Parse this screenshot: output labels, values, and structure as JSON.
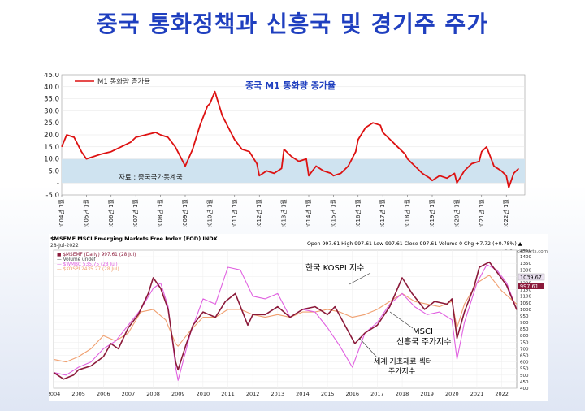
{
  "slide": {
    "title": "중국 통화정책과 신흥국 및 경기주 주가"
  },
  "chart_data": [
    {
      "type": "line",
      "title": "중국 M1 통화량 증가율",
      "legend": [
        "M1 통화량 증가율"
      ],
      "source_note": "자료 : 중국국가통계국",
      "ylim": [
        -5,
        45
      ],
      "yticks": [
        "45.0",
        "40.0",
        "35.0",
        "30.0",
        "25.0",
        "20.0",
        "15.0",
        "10.0",
        "5.0",
        "-",
        "-5.0"
      ],
      "xlim": [
        2004.0,
        2022.75
      ],
      "xticks": [
        "2004년 1월",
        "2005년 1월",
        "2006년 1월",
        "2007년 1월",
        "2008년 1월",
        "2009년 1월",
        "2010년 1월",
        "2011년 1월",
        "2012년 1월",
        "2013년 1월",
        "2014년 1월",
        "2015년 1월",
        "2016년 1월",
        "2017년 1월",
        "2018년 1월",
        "2019년 1월",
        "2020년 1월",
        "2021년 1월",
        "2022년 1월"
      ],
      "shade_range": [
        0,
        10
      ],
      "series": [
        {
          "name": "M1 통화량 증가율",
          "color": "#dd1111",
          "x": [
            2004.0,
            2004.2,
            2004.5,
            2004.8,
            2005.0,
            2005.3,
            2005.6,
            2006.0,
            2006.4,
            2006.8,
            2007.0,
            2007.4,
            2007.8,
            2008.0,
            2008.3,
            2008.6,
            2008.9,
            2009.0,
            2009.3,
            2009.6,
            2009.9,
            2010.0,
            2010.2,
            2010.5,
            2010.8,
            2011.0,
            2011.3,
            2011.6,
            2011.9,
            2012.0,
            2012.3,
            2012.6,
            2012.9,
            2013.0,
            2013.3,
            2013.6,
            2013.9,
            2014.0,
            2014.3,
            2014.6,
            2014.9,
            2015.0,
            2015.3,
            2015.6,
            2015.9,
            2016.0,
            2016.3,
            2016.6,
            2016.9,
            2017.0,
            2017.3,
            2017.6,
            2017.9,
            2018.0,
            2018.3,
            2018.6,
            2018.9,
            2019.0,
            2019.3,
            2019.6,
            2019.9,
            2020.0,
            2020.3,
            2020.6,
            2020.9,
            2021.0,
            2021.2,
            2021.5,
            2021.8,
            2022.0,
            2022.1,
            2022.3,
            2022.5
          ],
          "y": [
            15,
            20,
            19,
            13,
            10,
            11,
            12,
            13,
            15,
            17,
            19,
            20,
            21,
            20,
            19,
            15,
            9,
            7,
            14,
            24,
            32,
            33,
            38,
            28,
            22,
            18,
            14,
            13,
            8,
            3,
            5,
            4,
            6,
            14,
            11,
            9,
            10,
            3,
            7,
            5,
            4,
            3,
            4,
            7,
            13,
            18,
            23,
            25,
            24,
            21,
            18,
            15,
            12,
            10,
            7,
            4,
            2,
            1,
            3,
            2,
            4,
            0,
            5,
            8,
            9,
            13,
            15,
            7,
            5,
            3,
            -2,
            4,
            6
          ]
        }
      ]
    },
    {
      "type": "line",
      "title": "$MSEMF MSCI Emerging Markets Free Index (EOD) INDX",
      "date_label": "28-Jul-2022",
      "ohlc": "Open 997.61 High 997.61 Low 997.61 Close 997.61 Volume 0 Chg +7.72 (+0.78%) ▲",
      "watermark": "© StockCharts.com",
      "legend": [
        "■ $MSEMF (Daily) 997.61 (28 Jul)",
        "— Volume undef",
        "— $WMBC 535.75 (28 Jul)",
        "— $KOSPI 2435.27 (28 Jul)"
      ],
      "annotations": [
        "한국 KOSPI 지수",
        "MSCI",
        "신흥국 주가지수",
        "세계 기초재료 섹터",
        "주가지수"
      ],
      "end_labels": [
        "1039.67",
        "997.61"
      ],
      "ylim": [
        400,
        1450
      ],
      "yticks": [
        400,
        450,
        500,
        550,
        600,
        650,
        700,
        750,
        800,
        850,
        900,
        950,
        1000,
        1050,
        1100,
        1150,
        1200,
        1250,
        1300,
        1350,
        1400,
        1450
      ],
      "xlim": [
        2004.0,
        2022.6
      ],
      "xticks": [
        "2004",
        "2005",
        "2006",
        "2007",
        "2008",
        "2009",
        "2010",
        "2011",
        "2012",
        "2013",
        "2014",
        "2015",
        "2016",
        "2017",
        "2018",
        "2019",
        "2020",
        "2021",
        "2022"
      ],
      "series": [
        {
          "name": "$MSEMF",
          "color": "#8b1a3a",
          "x": [
            2004.0,
            2004.4,
            2004.8,
            2005.0,
            2005.5,
            2006.0,
            2006.3,
            2006.6,
            2007.0,
            2007.4,
            2007.8,
            2008.0,
            2008.3,
            2008.6,
            2008.9,
            2009.0,
            2009.3,
            2009.6,
            2010.0,
            2010.5,
            2010.9,
            2011.3,
            2011.8,
            2012.0,
            2012.5,
            2013.0,
            2013.5,
            2014.0,
            2014.5,
            2015.0,
            2015.3,
            2015.7,
            2016.1,
            2016.5,
            2017.0,
            2017.5,
            2018.0,
            2018.4,
            2018.9,
            2019.3,
            2019.8,
            2020.0,
            2020.2,
            2020.5,
            2020.9,
            2021.1,
            2021.5,
            2021.9,
            2022.2,
            2022.6
          ],
          "y": [
            520,
            470,
            500,
            540,
            570,
            640,
            740,
            700,
            860,
            960,
            1120,
            1240,
            1160,
            1000,
            600,
            540,
            720,
            880,
            980,
            940,
            1060,
            1120,
            880,
            960,
            960,
            1020,
            940,
            1000,
            1020,
            960,
            1020,
            880,
            740,
            820,
            880,
            1020,
            1240,
            1120,
            1000,
            1060,
            1040,
            1080,
            780,
            980,
            1180,
            1320,
            1360,
            1260,
            1180,
            997
          ]
        },
        {
          "name": "$WMBC",
          "color": "#e060e0",
          "x": [
            2004.0,
            2004.5,
            2005.0,
            2005.5,
            2006.0,
            2006.5,
            2007.0,
            2007.5,
            2008.0,
            2008.3,
            2008.6,
            2008.9,
            2009.0,
            2009.5,
            2010.0,
            2010.5,
            2011.0,
            2011.5,
            2012.0,
            2012.5,
            2013.0,
            2013.5,
            2014.0,
            2014.5,
            2015.0,
            2015.5,
            2016.0,
            2016.5,
            2017.0,
            2017.5,
            2018.0,
            2018.5,
            2019.0,
            2019.5,
            2020.0,
            2020.2,
            2020.5,
            2021.0,
            2021.4,
            2021.8,
            2022.2,
            2022.6
          ],
          "y": [
            520,
            500,
            560,
            600,
            700,
            760,
            880,
            1000,
            1160,
            1200,
            1020,
            560,
            460,
            820,
            1080,
            1040,
            1320,
            1300,
            1100,
            1080,
            1120,
            940,
            1000,
            980,
            860,
            720,
            560,
            820,
            900,
            1040,
            1120,
            1020,
            960,
            980,
            920,
            620,
            900,
            1200,
            1340,
            1300,
            1200,
            1000
          ]
        },
        {
          "name": "$KOSPI",
          "color": "#f0a070",
          "x": [
            2004.0,
            2004.5,
            2005.0,
            2005.5,
            2006.0,
            2006.5,
            2007.0,
            2007.5,
            2008.0,
            2008.5,
            2008.9,
            2009.0,
            2009.5,
            2010.0,
            2010.5,
            2011.0,
            2011.5,
            2012.0,
            2012.5,
            2013.0,
            2013.5,
            2014.0,
            2014.5,
            2015.0,
            2015.5,
            2016.0,
            2016.5,
            2017.0,
            2017.5,
            2018.0,
            2018.5,
            2019.0,
            2019.5,
            2020.0,
            2020.2,
            2020.5,
            2021.0,
            2021.5,
            2022.0,
            2022.6
          ],
          "y": [
            620,
            600,
            640,
            700,
            800,
            760,
            820,
            980,
            1000,
            920,
            740,
            720,
            840,
            940,
            940,
            1000,
            1000,
            960,
            940,
            960,
            940,
            980,
            980,
            1000,
            980,
            940,
            960,
            1000,
            1060,
            1120,
            1060,
            1040,
            1020,
            1060,
            860,
            1040,
            1200,
            1260,
            1140,
            1040
          ]
        }
      ]
    }
  ]
}
